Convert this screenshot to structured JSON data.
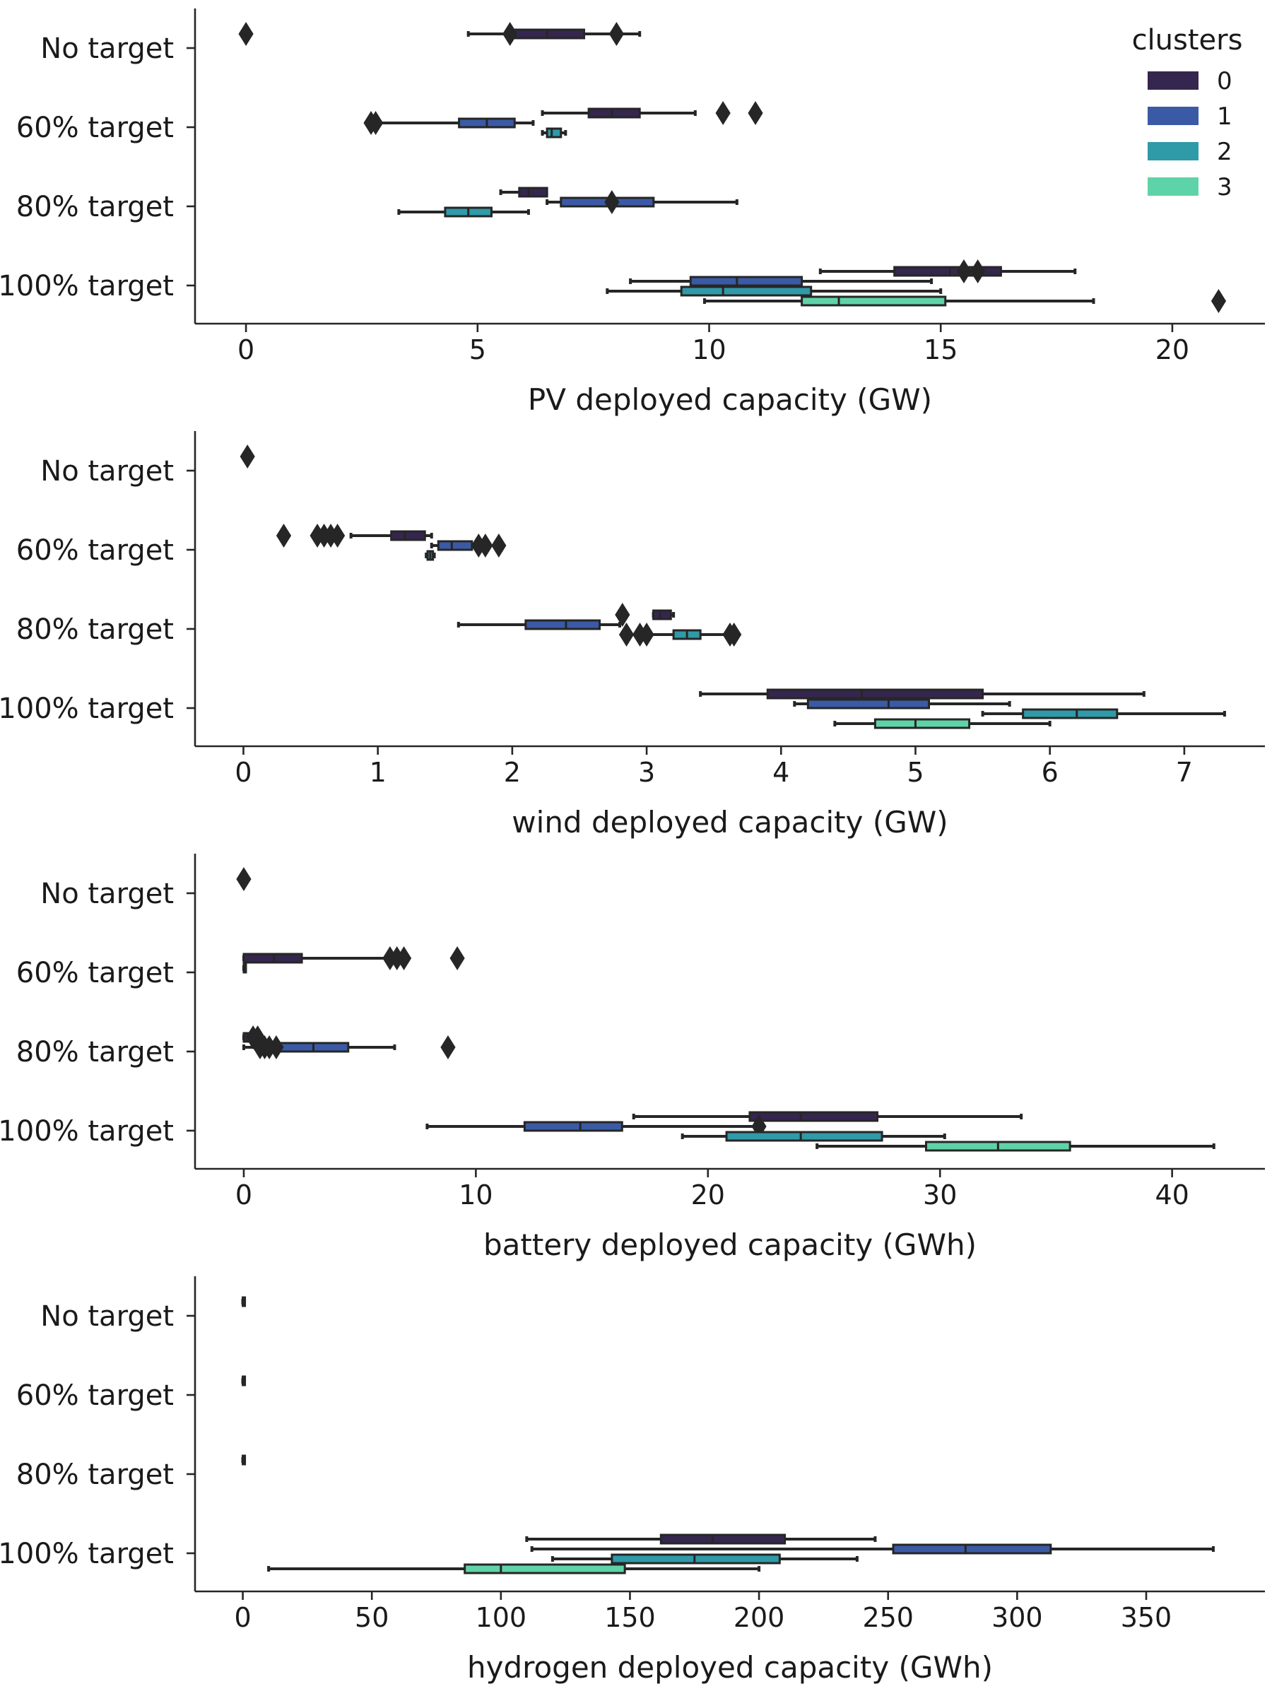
{
  "legend": {
    "title": "clusters",
    "entries": [
      "0",
      "1",
      "2",
      "3"
    ]
  },
  "cluster_colors": [
    "#35264f",
    "#3b5aa6",
    "#2f9aa8",
    "#5fd3a8"
  ],
  "chart_data": [
    {
      "type": "box",
      "orientation": "horizontal",
      "xlabel": "PV deployed capacity (GW)",
      "categories": [
        "No target",
        "60% target",
        "80% target",
        "100% target"
      ],
      "xlim": [
        -1.1,
        22.0
      ],
      "xticks": [
        0,
        5,
        10,
        15,
        20
      ],
      "boxes": [
        {
          "category": 0,
          "cluster": 0,
          "whisker": [
            4.8,
            8.5
          ],
          "q1": 5.8,
          "median": 6.5,
          "q3": 7.3,
          "outliers": [
            0,
            5.7,
            8.0
          ]
        },
        {
          "category": 1,
          "cluster": 0,
          "whisker": [
            6.4,
            9.7
          ],
          "q1": 7.4,
          "median": 7.9,
          "q3": 8.5,
          "outliers": [
            10.3,
            11.0
          ]
        },
        {
          "category": 1,
          "cluster": 1,
          "whisker": [
            2.9,
            6.2
          ],
          "q1": 4.6,
          "median": 5.2,
          "q3": 5.8,
          "outliers": [
            2.7,
            2.8
          ]
        },
        {
          "category": 1,
          "cluster": 2,
          "whisker": [
            6.4,
            6.9
          ],
          "q1": 6.5,
          "median": 6.6,
          "q3": 6.8,
          "outliers": []
        },
        {
          "category": 2,
          "cluster": 0,
          "whisker": [
            5.5,
            6.1
          ],
          "q1": 5.9,
          "median": 6.1,
          "q3": 6.5,
          "outliers": []
        },
        {
          "category": 2,
          "cluster": 1,
          "whisker": [
            6.5,
            10.6
          ],
          "q1": 6.8,
          "median": 7.9,
          "q3": 8.8,
          "outliers": [
            7.9
          ]
        },
        {
          "category": 2,
          "cluster": 2,
          "whisker": [
            3.3,
            6.1
          ],
          "q1": 4.3,
          "median": 4.8,
          "q3": 5.3,
          "outliers": []
        },
        {
          "category": 3,
          "cluster": 0,
          "whisker": [
            12.4,
            17.9
          ],
          "q1": 14.0,
          "median": 15.2,
          "q3": 16.3,
          "outliers": [
            15.5,
            15.8
          ]
        },
        {
          "category": 3,
          "cluster": 1,
          "whisker": [
            8.3,
            14.8
          ],
          "q1": 9.6,
          "median": 10.6,
          "q3": 12.0,
          "outliers": []
        },
        {
          "category": 3,
          "cluster": 2,
          "whisker": [
            7.8,
            15.0
          ],
          "q1": 9.4,
          "median": 10.3,
          "q3": 12.2,
          "outliers": []
        },
        {
          "category": 3,
          "cluster": 3,
          "whisker": [
            9.9,
            18.3
          ],
          "q1": 12.0,
          "median": 12.8,
          "q3": 15.1,
          "outliers": [
            21.0
          ]
        }
      ]
    },
    {
      "type": "box",
      "orientation": "horizontal",
      "xlabel": "wind deployed capacity (GW)",
      "categories": [
        "No target",
        "60% target",
        "80% target",
        "100% target"
      ],
      "xlim": [
        -0.36,
        7.6
      ],
      "xticks": [
        0,
        1,
        2,
        3,
        4,
        5,
        6,
        7
      ],
      "boxes": [
        {
          "category": 0,
          "cluster": 0,
          "whisker": [
            0.0,
            0.04
          ],
          "q1": 0.01,
          "median": 0.02,
          "q3": 0.03,
          "outliers": [
            0.03
          ]
        },
        {
          "category": 1,
          "cluster": 0,
          "whisker": [
            0.8,
            1.4
          ],
          "q1": 1.1,
          "median": 1.2,
          "q3": 1.35,
          "outliers": [
            0.3,
            0.55,
            0.6,
            0.65,
            0.7
          ]
        },
        {
          "category": 1,
          "cluster": 1,
          "whisker": [
            1.4,
            1.8
          ],
          "q1": 1.45,
          "median": 1.55,
          "q3": 1.7,
          "outliers": [
            1.75,
            1.8,
            1.9
          ]
        },
        {
          "category": 1,
          "cluster": 2,
          "whisker": [
            1.36,
            1.42
          ],
          "q1": 1.37,
          "median": 1.39,
          "q3": 1.41,
          "outliers": []
        },
        {
          "category": 2,
          "cluster": 0,
          "whisker": [
            3.05,
            3.2
          ],
          "q1": 3.05,
          "median": 3.1,
          "q3": 3.18,
          "outliers": [
            2.82
          ]
        },
        {
          "category": 2,
          "cluster": 1,
          "whisker": [
            1.6,
            2.8
          ],
          "q1": 2.1,
          "median": 2.4,
          "q3": 2.65,
          "outliers": []
        },
        {
          "category": 2,
          "cluster": 2,
          "whisker": [
            3.0,
            3.6
          ],
          "q1": 3.2,
          "median": 3.3,
          "q3": 3.4,
          "outliers": [
            2.85,
            2.95,
            3.0,
            3.62,
            3.65
          ]
        },
        {
          "category": 3,
          "cluster": 0,
          "whisker": [
            3.4,
            6.7
          ],
          "q1": 3.9,
          "median": 4.6,
          "q3": 5.5,
          "outliers": []
        },
        {
          "category": 3,
          "cluster": 1,
          "whisker": [
            4.1,
            5.7
          ],
          "q1": 4.2,
          "median": 4.8,
          "q3": 5.1,
          "outliers": []
        },
        {
          "category": 3,
          "cluster": 2,
          "whisker": [
            5.5,
            7.3
          ],
          "q1": 5.8,
          "median": 6.2,
          "q3": 6.5,
          "outliers": []
        },
        {
          "category": 3,
          "cluster": 3,
          "whisker": [
            4.4,
            6.0
          ],
          "q1": 4.7,
          "median": 5.0,
          "q3": 5.4,
          "outliers": []
        }
      ]
    },
    {
      "type": "box",
      "orientation": "horizontal",
      "xlabel": "battery deployed capacity (GWh)",
      "categories": [
        "No target",
        "60% target",
        "80% target",
        "100% target"
      ],
      "xlim": [
        -2.1,
        44.0
      ],
      "xticks": [
        0,
        10,
        20,
        30,
        40
      ],
      "boxes": [
        {
          "category": 0,
          "cluster": 0,
          "whisker": [
            0.0,
            0.05
          ],
          "q1": 0.0,
          "median": 0.02,
          "q3": 0.04,
          "outliers": [
            0.0
          ]
        },
        {
          "category": 1,
          "cluster": 0,
          "whisker": [
            0.0,
            6.5
          ],
          "q1": 0.0,
          "median": 1.3,
          "q3": 2.5,
          "outliers": [
            6.3,
            6.6,
            6.9,
            9.2
          ]
        },
        {
          "category": 1,
          "cluster": 1,
          "whisker": [
            0.0,
            0.0
          ],
          "q1": 0.0,
          "median": 0.0,
          "q3": 0.0,
          "outliers": []
        },
        {
          "category": 2,
          "cluster": 0,
          "whisker": [
            0.0,
            0.4
          ],
          "q1": 0.0,
          "median": 0.2,
          "q3": 0.35,
          "outliers": [
            0.4,
            0.6
          ]
        },
        {
          "category": 2,
          "cluster": 1,
          "whisker": [
            0.0,
            6.5
          ],
          "q1": 1.5,
          "median": 3.0,
          "q3": 4.5,
          "outliers": [
            0.7,
            0.9,
            1.1,
            1.4,
            8.8
          ]
        },
        {
          "category": 3,
          "cluster": 0,
          "whisker": [
            16.8,
            33.5
          ],
          "q1": 21.8,
          "median": 24.0,
          "q3": 27.3,
          "outliers": []
        },
        {
          "category": 3,
          "cluster": 1,
          "whisker": [
            7.9,
            22.2
          ],
          "q1": 12.1,
          "median": 14.5,
          "q3": 16.3,
          "outliers": [
            22.2
          ]
        },
        {
          "category": 3,
          "cluster": 2,
          "whisker": [
            18.9,
            30.2
          ],
          "q1": 20.8,
          "median": 24.0,
          "q3": 27.5,
          "outliers": []
        },
        {
          "category": 3,
          "cluster": 3,
          "whisker": [
            24.7,
            41.8
          ],
          "q1": 29.4,
          "median": 32.5,
          "q3": 35.6,
          "outliers": []
        }
      ]
    },
    {
      "type": "box",
      "orientation": "horizontal",
      "xlabel": "hydrogen deployed capacity (GWh)",
      "categories": [
        "No target",
        "60% target",
        "80% target",
        "100% target"
      ],
      "xlim": [
        -18.5,
        396.0
      ],
      "xticks": [
        0,
        50,
        100,
        150,
        200,
        250,
        300,
        350
      ],
      "boxes": [
        {
          "category": 0,
          "cluster": 0,
          "whisker": [
            0,
            0
          ],
          "q1": 0,
          "median": 0,
          "q3": 0,
          "outliers": []
        },
        {
          "category": 1,
          "cluster": 0,
          "whisker": [
            0,
            0
          ],
          "q1": 0,
          "median": 0,
          "q3": 0,
          "outliers": []
        },
        {
          "category": 2,
          "cluster": 0,
          "whisker": [
            0,
            0
          ],
          "q1": 0,
          "median": 0,
          "q3": 0,
          "outliers": []
        },
        {
          "category": 3,
          "cluster": 0,
          "whisker": [
            110,
            245
          ],
          "q1": 162,
          "median": 182,
          "q3": 210,
          "outliers": []
        },
        {
          "category": 3,
          "cluster": 1,
          "whisker": [
            112,
            376
          ],
          "q1": 252,
          "median": 280,
          "q3": 313,
          "outliers": []
        },
        {
          "category": 3,
          "cluster": 2,
          "whisker": [
            120,
            238
          ],
          "q1": 143,
          "median": 175,
          "q3": 208,
          "outliers": []
        },
        {
          "category": 3,
          "cluster": 3,
          "whisker": [
            10,
            200
          ],
          "q1": 86,
          "median": 100,
          "q3": 148,
          "outliers": []
        }
      ]
    }
  ]
}
